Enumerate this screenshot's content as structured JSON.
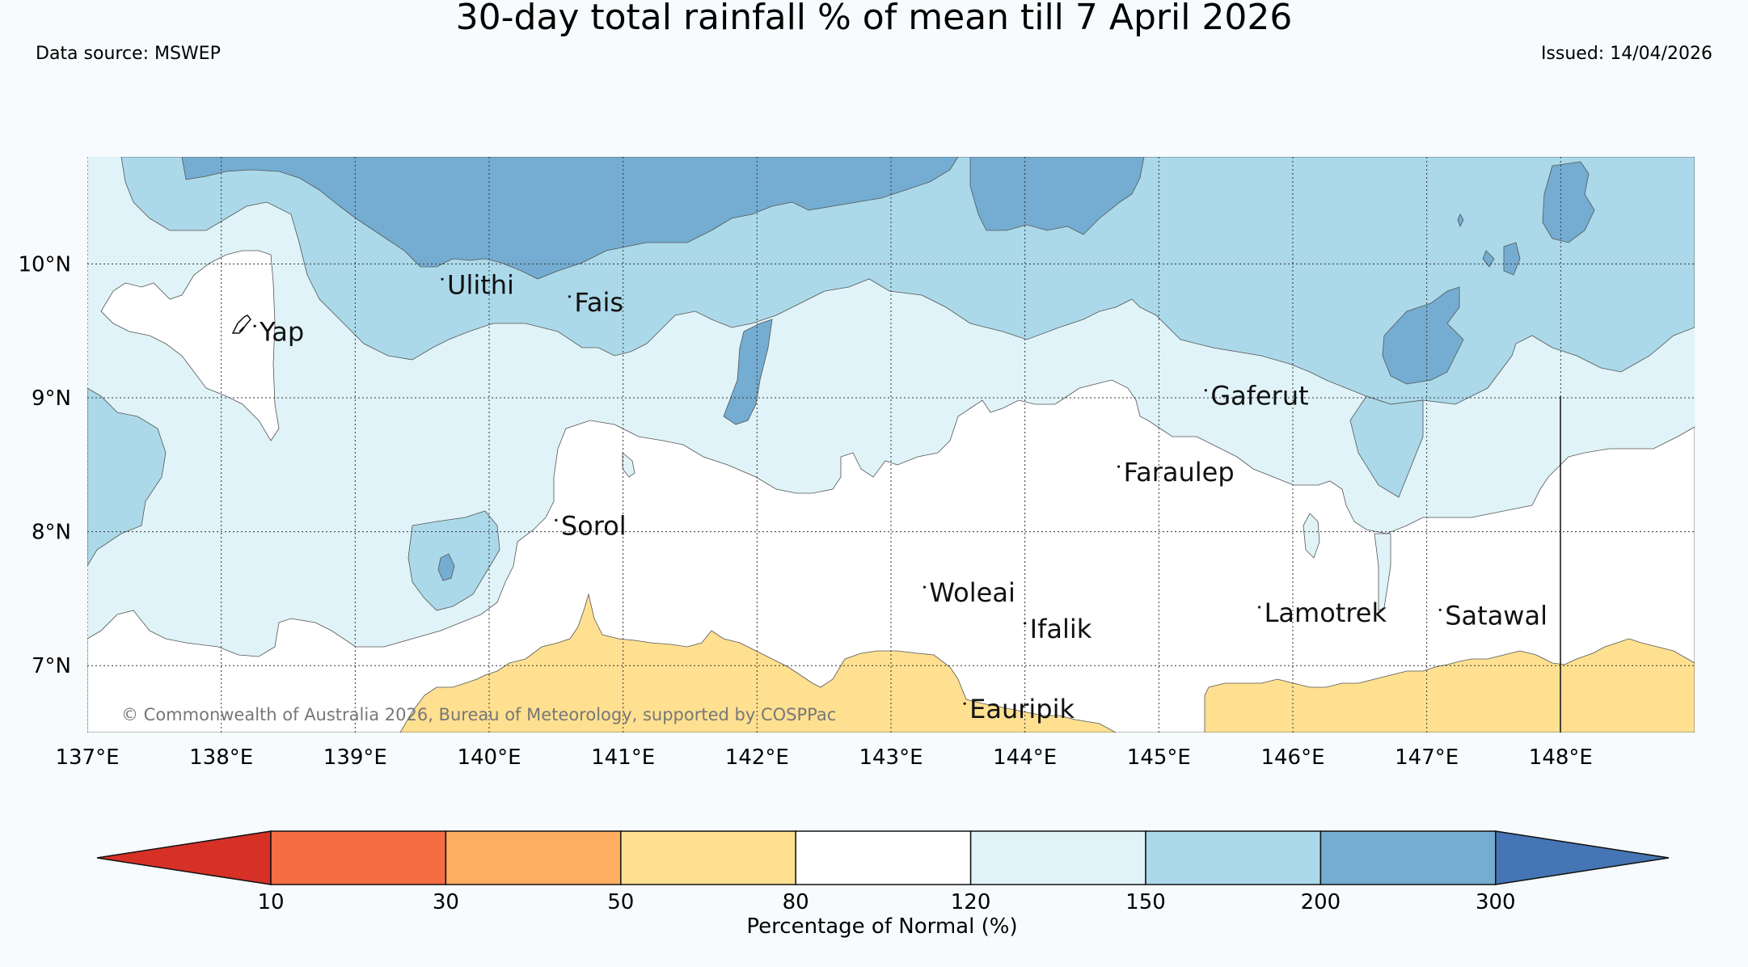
{
  "header": {
    "title": "30-day total rainfall % of mean till 7 April 2026",
    "source": "Data source: MSWEP",
    "issued": "Issued: 14/04/2026"
  },
  "map": {
    "lon_range": [
      137,
      149
    ],
    "lat_range": [
      6.5,
      10.8
    ],
    "x_ticks": [
      "137°E",
      "138°E",
      "139°E",
      "140°E",
      "141°E",
      "142°E",
      "143°E",
      "144°E",
      "145°E",
      "146°E",
      "147°E",
      "148°E"
    ],
    "y_ticks": [
      "10°N",
      "9°N",
      "8°N",
      "7°N"
    ],
    "copyright": "© Commonwealth of Australia 2026, Bureau of Meteorology, supported by COSPPac",
    "islands": [
      {
        "name": "Ulithi",
        "lon": 139.65,
        "lat": 9.85
      },
      {
        "name": "Fais",
        "lon": 140.6,
        "lat": 9.72
      },
      {
        "name": "Yap",
        "lon": 138.25,
        "lat": 9.5
      },
      {
        "name": "Gaferut",
        "lon": 145.35,
        "lat": 9.02
      },
      {
        "name": "Faraulep",
        "lon": 144.7,
        "lat": 8.45
      },
      {
        "name": "Sorol",
        "lon": 140.5,
        "lat": 8.05
      },
      {
        "name": "Woleai",
        "lon": 143.25,
        "lat": 7.55
      },
      {
        "name": "Ifalik",
        "lon": 144.0,
        "lat": 7.28
      },
      {
        "name": "Lamotrek",
        "lon": 145.75,
        "lat": 7.4
      },
      {
        "name": "Satawal",
        "lon": 147.1,
        "lat": 7.38
      },
      {
        "name": "Eauripik",
        "lon": 143.55,
        "lat": 6.68
      }
    ]
  },
  "colorbar": {
    "label": "Percentage of Normal (%)",
    "ticks": [
      "10",
      "30",
      "50",
      "80",
      "120",
      "150",
      "200",
      "300"
    ],
    "colors": {
      "under": "#d73027",
      "c10_30": "#f46d43",
      "c30_50": "#fdae61",
      "c50_80": "#fee090",
      "c80_120": "#ffffff",
      "c120_150": "#e0f3f8",
      "c150_200": "#abd9e9",
      "c200_300": "#74add1",
      "over": "#4575b4"
    }
  }
}
